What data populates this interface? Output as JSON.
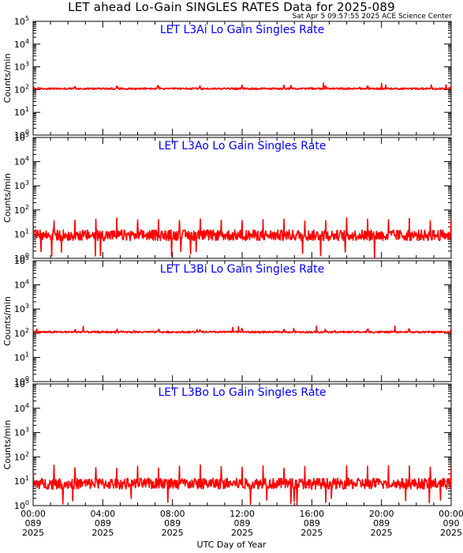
{
  "header": {
    "title": "LET ahead Lo-Gain SINGLES RATES Data for 2025-089",
    "subtitle": "Sat Apr  5 09:57:55 2025 ACE Science Center"
  },
  "colors": {
    "series": "#ff0000",
    "panel_title": "#0000ff",
    "axes": "#000000",
    "background": "#ffffff"
  },
  "chart_data": [
    {
      "type": "line",
      "title": "LET L3Ai Lo Gain Singles Rate",
      "ylabel": "Counts/min",
      "xlabel": "",
      "yscale": "log",
      "ylim": [
        1,
        100000
      ],
      "xlim": [
        "2025-089 00:00",
        "2025-090 00:00"
      ],
      "baseline": 110,
      "noise_factor": 1.08,
      "spike_max": 150,
      "spike_period_hours": 2.4,
      "dip_min": 100
    },
    {
      "type": "line",
      "title": "LET L3Ao Lo Gain Singles Rate",
      "ylabel": "Counts/min",
      "xlabel": "",
      "yscale": "log",
      "ylim": [
        1,
        100000
      ],
      "xlim": [
        "2025-089 00:00",
        "2025-090 00:00"
      ],
      "baseline": 9,
      "noise_factor": 1.6,
      "spike_max": 45,
      "spike_period_hours": 1.2,
      "dip_min": 1
    },
    {
      "type": "line",
      "title": "LET L3Bi Lo Gain Singles Rate",
      "ylabel": "Counts/min",
      "xlabel": "",
      "yscale": "log",
      "ylim": [
        1,
        100000
      ],
      "xlim": [
        "2025-089 00:00",
        "2025-090 00:00"
      ],
      "baseline": 112,
      "noise_factor": 1.08,
      "spike_max": 150,
      "spike_period_hours": 2.4,
      "dip_min": 100
    },
    {
      "type": "line",
      "title": "LET L3Bo Lo Gain Singles Rate",
      "ylabel": "Counts/min",
      "xlabel": "",
      "yscale": "log",
      "ylim": [
        1,
        100000
      ],
      "xlim": [
        "2025-089 00:00",
        "2025-090 00:00"
      ],
      "baseline": 8,
      "noise_factor": 1.6,
      "spike_max": 45,
      "spike_period_hours": 1.2,
      "dip_min": 1
    }
  ],
  "y_ticks": [
    {
      "value": 1,
      "base": "10",
      "exp": "0"
    },
    {
      "value": 10,
      "base": "10",
      "exp": "1"
    },
    {
      "value": 100,
      "base": "10",
      "exp": "2"
    },
    {
      "value": 1000,
      "base": "10",
      "exp": "3"
    },
    {
      "value": 10000,
      "base": "10",
      "exp": "4"
    },
    {
      "value": 100000,
      "base": "10",
      "exp": "5"
    }
  ],
  "x_ticks": [
    {
      "hour": 0,
      "time": "00:00",
      "doy": "089",
      "year": "2025"
    },
    {
      "hour": 4,
      "time": "04:00",
      "doy": "089",
      "year": "2025"
    },
    {
      "hour": 8,
      "time": "08:00",
      "doy": "089",
      "year": "2025"
    },
    {
      "hour": 12,
      "time": "12:00",
      "doy": "089",
      "year": "2025"
    },
    {
      "hour": 16,
      "time": "16:00",
      "doy": "089",
      "year": "2025"
    },
    {
      "hour": 20,
      "time": "20:00",
      "doy": "089",
      "year": "2025"
    },
    {
      "hour": 24,
      "time": "00:00",
      "doy": "090",
      "year": "2025"
    }
  ],
  "x_axis_label": "UTC Day of Year"
}
